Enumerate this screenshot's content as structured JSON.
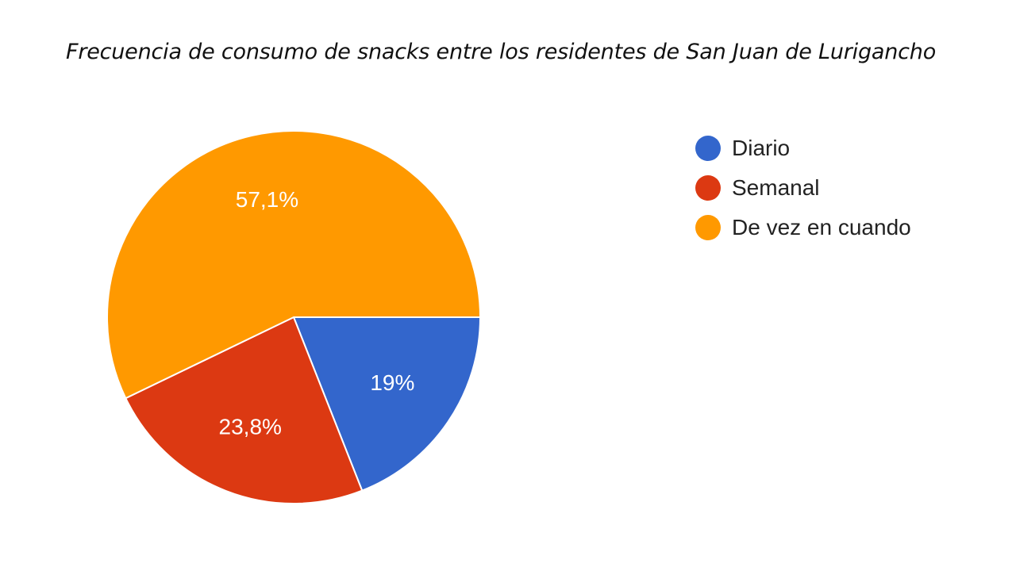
{
  "chart_data": {
    "type": "pie",
    "title": "Frecuencia de consumo de snacks entre los residentes de San Juan de Lurigancho",
    "categories": [
      "Diario",
      "Semanal",
      "De vez en cuando"
    ],
    "values": [
      19.0,
      23.8,
      57.1
    ],
    "labels": [
      "19%",
      "23,8%",
      "57,1%"
    ],
    "colors": [
      "#3366cc",
      "#dc3912",
      "#ff9900"
    ],
    "legend_position": "right"
  }
}
